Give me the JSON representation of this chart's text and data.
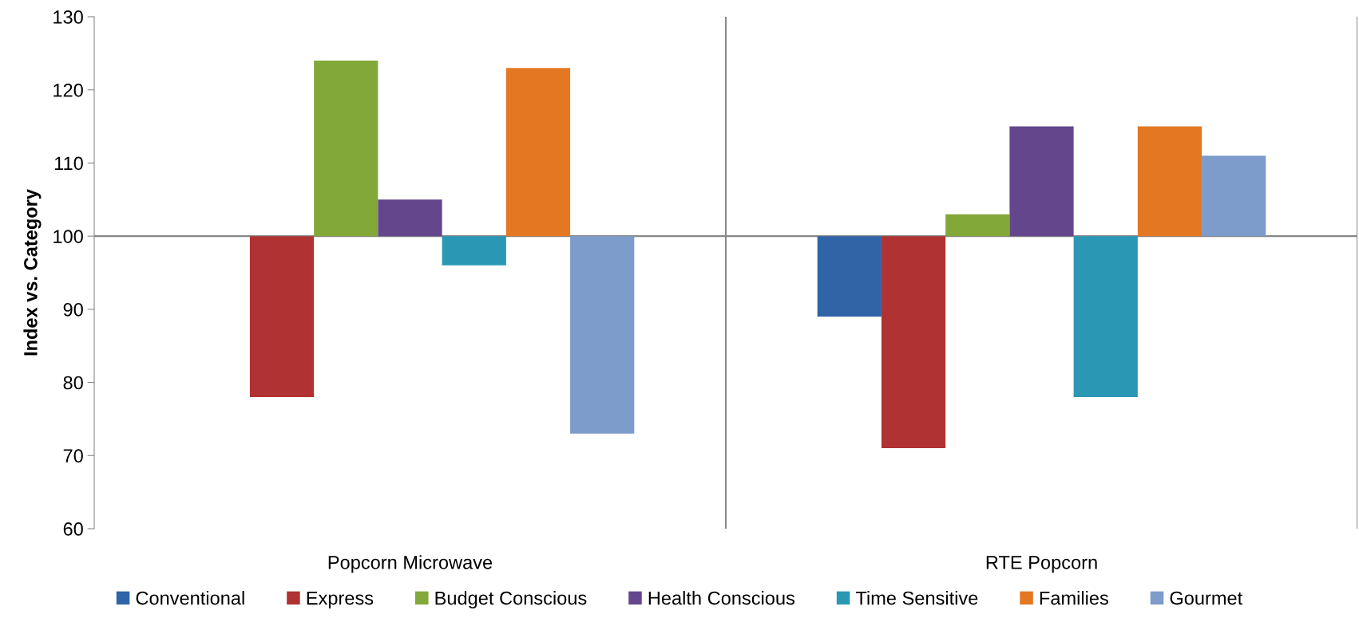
{
  "chart_data": {
    "type": "bar",
    "ylabel": "Index vs. Category",
    "categories": [
      "Popcorn Microwave",
      "RTE Popcorn"
    ],
    "series": [
      {
        "name": "Conventional",
        "color": "#2f64a6",
        "base": [
          null,
          100
        ],
        "values": [
          null,
          -11
        ]
      },
      {
        "name": "Express",
        "color": "#b03232",
        "base": [
          100,
          100
        ],
        "values": [
          -22,
          -29
        ]
      },
      {
        "name": "Budget Conscious",
        "color": "#82a83a",
        "base": [
          100,
          100
        ],
        "values": [
          24,
          3
        ]
      },
      {
        "name": "Health Conscious",
        "color": "#64468c",
        "base": [
          100,
          100
        ],
        "values": [
          5,
          15
        ]
      },
      {
        "name": "Time Sensitive",
        "color": "#2a98b4",
        "base": [
          100,
          100
        ],
        "values": [
          -4,
          -22
        ]
      },
      {
        "name": "Families",
        "color": "#e47822",
        "base": [
          100,
          100
        ],
        "values": [
          23,
          15
        ]
      },
      {
        "name": "Gourmet",
        "color": "#7d9bcb",
        "base": [
          100,
          100
        ],
        "values": [
          -27,
          11
        ]
      }
    ],
    "ylim": [
      60,
      130
    ],
    "yticks": [
      60,
      70,
      80,
      90,
      100,
      110,
      120,
      130
    ],
    "grid": "x",
    "legend": "bottom",
    "ref_lines": [
      {
        "axis": "y",
        "value": 100,
        "color": "#888888"
      }
    ]
  }
}
